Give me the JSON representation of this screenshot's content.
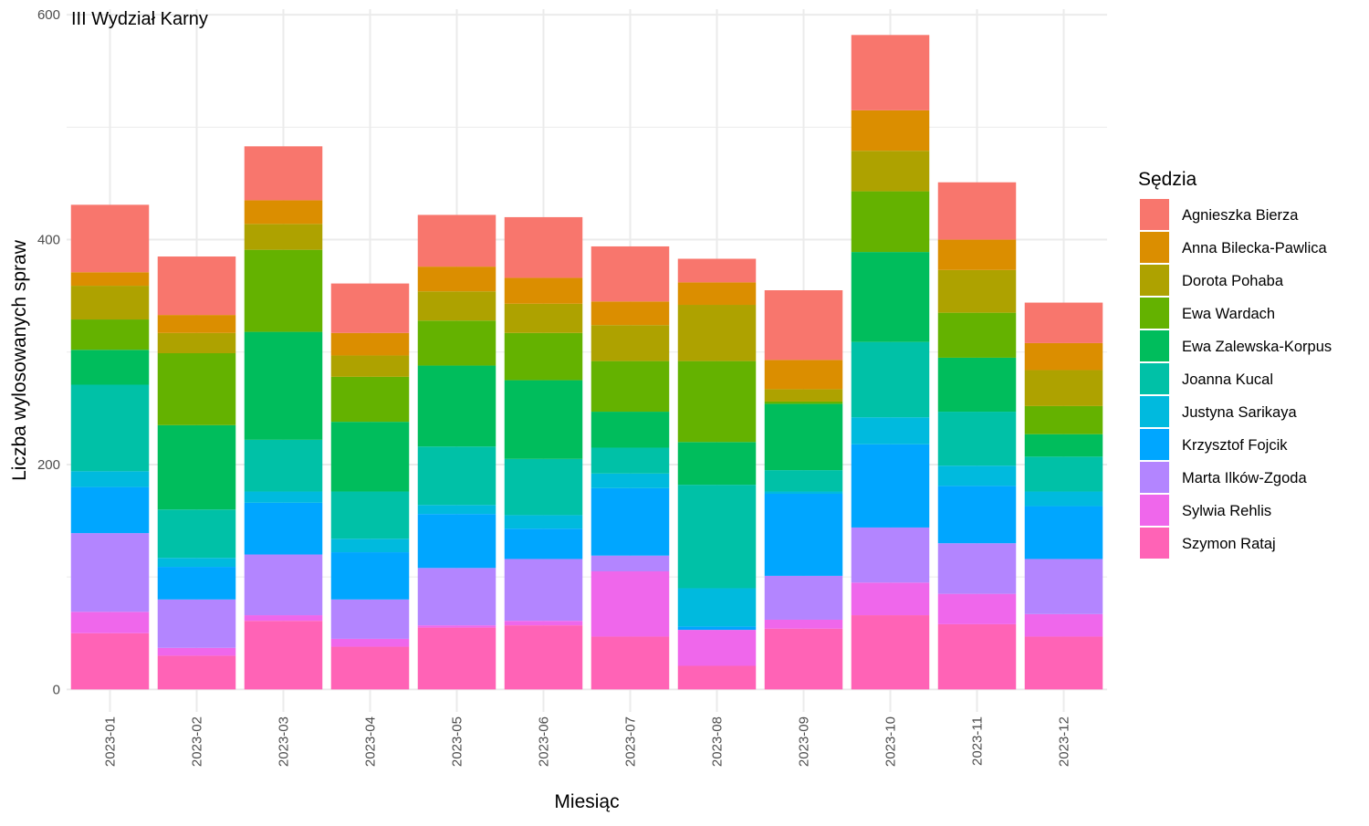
{
  "chart_data": {
    "type": "bar",
    "stacked": true,
    "title": "III Wydział Karny",
    "xlabel": "Miesiąc",
    "ylabel": "Liczba wylosowanych spraw",
    "ylim": [
      -20,
      605
    ],
    "yticks": [
      0,
      200,
      400,
      600
    ],
    "grid": true,
    "legend_title": "Sędzia",
    "legend_position": "right",
    "categories": [
      "2023-01",
      "2023-02",
      "2023-03",
      "2023-04",
      "2023-05",
      "2023-06",
      "2023-07",
      "2023-08",
      "2023-09",
      "2023-10",
      "2023-11",
      "2023-12"
    ],
    "series": [
      {
        "name": "Agnieszka Bierza",
        "color": "#F8766D",
        "values": [
          60,
          52,
          48,
          44,
          46,
          54,
          49,
          21,
          62,
          67,
          51,
          36
        ]
      },
      {
        "name": "Anna Bilecka-Pawlica",
        "color": "#DB8E00",
        "values": [
          12,
          16,
          21,
          20,
          22,
          23,
          21,
          20,
          26,
          36,
          27,
          24
        ]
      },
      {
        "name": "Dorota Pohaba",
        "color": "#AEA200",
        "values": [
          30,
          18,
          23,
          19,
          26,
          26,
          32,
          50,
          11,
          36,
          38,
          32
        ]
      },
      {
        "name": "Ewa Wardach",
        "color": "#64B200",
        "values": [
          27,
          64,
          73,
          40,
          40,
          42,
          45,
          72,
          2,
          54,
          40,
          25
        ]
      },
      {
        "name": "Ewa Zalewska-Korpus",
        "color": "#00BD5C",
        "values": [
          31,
          75,
          96,
          62,
          72,
          70,
          32,
          38,
          59,
          80,
          48,
          20
        ]
      },
      {
        "name": "Joanna Kucal",
        "color": "#00C1A7",
        "values": [
          77,
          43,
          46,
          42,
          52,
          50,
          23,
          92,
          19,
          67,
          48,
          31
        ]
      },
      {
        "name": "Justyna Sarikaya",
        "color": "#00BADE",
        "values": [
          14,
          8,
          10,
          12,
          8,
          12,
          13,
          34,
          2,
          24,
          18,
          13
        ]
      },
      {
        "name": "Krzysztof Fojcik",
        "color": "#00A6FF",
        "values": [
          41,
          29,
          46,
          42,
          48,
          27,
          60,
          3,
          73,
          74,
          51,
          47
        ]
      },
      {
        "name": "Marta Ilków-Zgoda",
        "color": "#B385FF",
        "values": [
          70,
          43,
          54,
          35,
          51,
          55,
          14,
          0,
          39,
          49,
          45,
          49
        ]
      },
      {
        "name": "Sylwia Rehlis",
        "color": "#EF67EB",
        "values": [
          19,
          7,
          5,
          7,
          2,
          4,
          58,
          32,
          8,
          29,
          27,
          20
        ]
      },
      {
        "name": "Szymon Rataj",
        "color": "#FF63B6",
        "values": [
          50,
          30,
          61,
          38,
          55,
          57,
          47,
          21,
          54,
          66,
          58,
          47
        ]
      }
    ]
  }
}
